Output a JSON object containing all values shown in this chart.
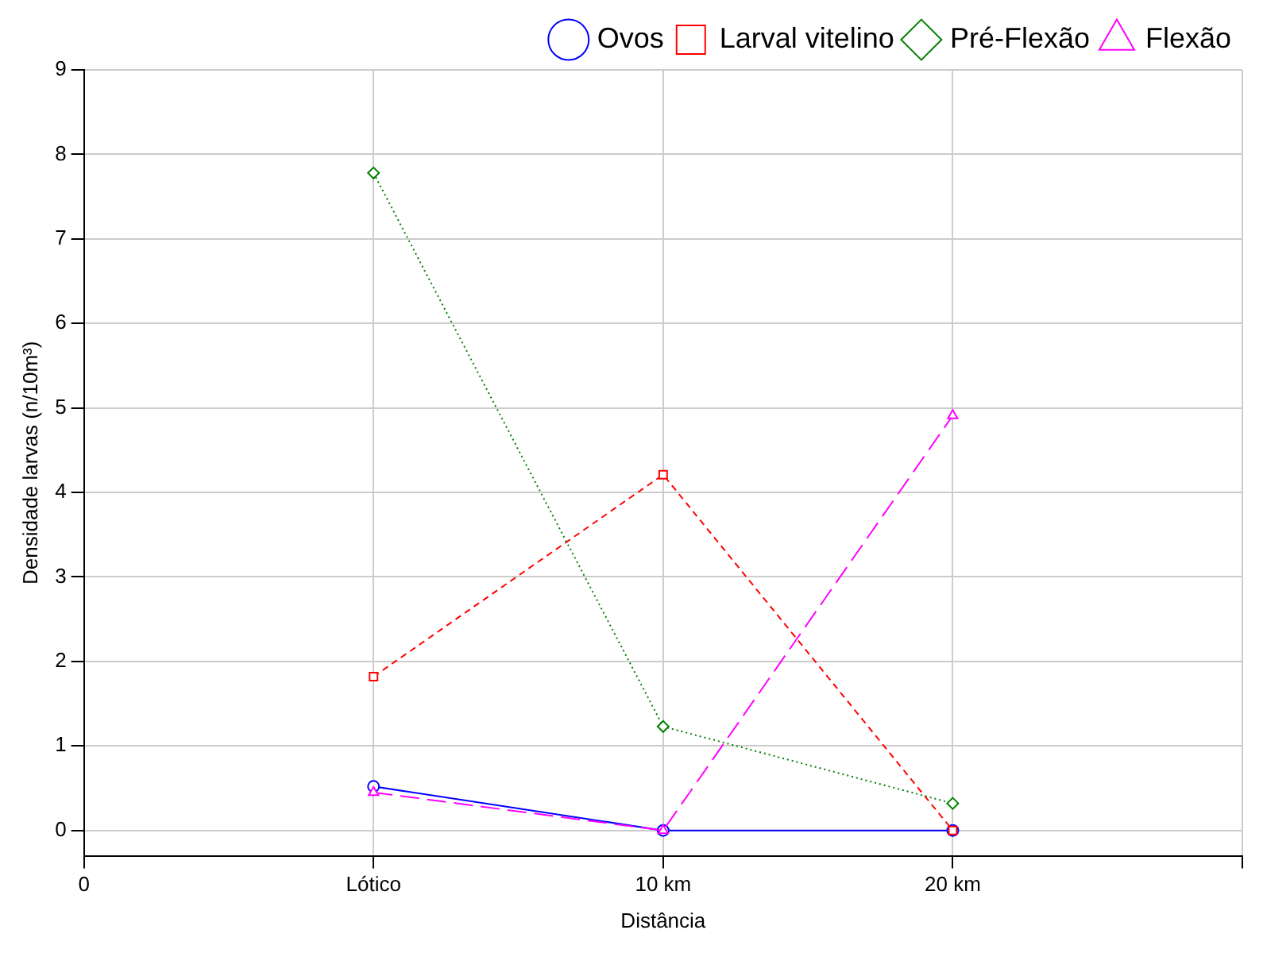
{
  "chart_data": {
    "type": "line",
    "xlabel": "Distância",
    "ylabel": "Densidade larvas (n/10m³)",
    "categories": [
      "0",
      "Lótico",
      "10 km",
      "20 km",
      null
    ],
    "ylim": [
      -0.3,
      9
    ],
    "yticks": [
      0,
      1,
      2,
      3,
      4,
      5,
      6,
      7,
      8,
      9
    ],
    "grid": true,
    "legend": "top right",
    "series": [
      {
        "name": "Ovos",
        "color": "#0000ff",
        "marker": "circle",
        "line_style": "solid",
        "values": [
          null,
          0.52,
          0,
          0,
          null
        ]
      },
      {
        "name": "Larval vitelino",
        "color": "#ff0000",
        "marker": "square",
        "line_style": "dashed",
        "values": [
          null,
          1.82,
          4.21,
          0,
          null
        ]
      },
      {
        "name": "Pré-Flexão",
        "color": "#008000",
        "marker": "diamond",
        "line_style": "dotted",
        "values": [
          null,
          7.78,
          1.23,
          0.32,
          null
        ]
      },
      {
        "name": "Flexão",
        "color": "#ff00ff",
        "marker": "triangle",
        "line_style": "longdash",
        "values": [
          null,
          0.45,
          0,
          4.91,
          null
        ]
      }
    ]
  }
}
